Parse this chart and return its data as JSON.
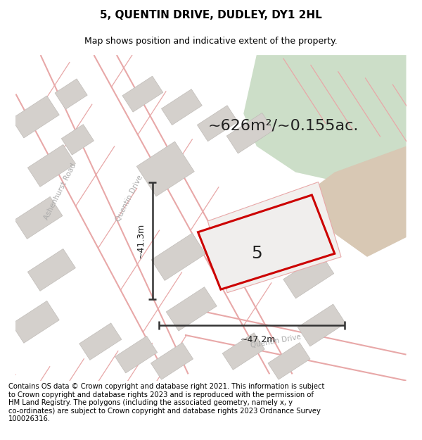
{
  "title": "5, QUENTIN DRIVE, DUDLEY, DY1 2HL",
  "subtitle": "Map shows position and indicative extent of the property.",
  "footer": "Contains OS data © Crown copyright and database right 2021. This information is subject\nto Crown copyright and database rights 2023 and is reproduced with the permission of\nHM Land Registry. The polygons (including the associated geometry, namely x, y\nco-ordinates) are subject to Crown copyright and database rights 2023 Ordnance Survey\n100026316.",
  "area_label": "~626m²/~0.155ac.",
  "dim_height": "~41.3m",
  "dim_width": "~47.2m",
  "plot_number": "5",
  "map_bg": "#f7f6f4",
  "green_color": "#ccdec8",
  "tan_color": "#d8c8b4",
  "road_color": "#e8a8a8",
  "building_color": "#d4d0cc",
  "building_edge": "#c0bcb8",
  "plot_outline_color": "#cc0000",
  "plot_fill_color": "#f0eeed",
  "dim_color": "#333333",
  "road_label_color": "#aaaaaa",
  "title_fontsize": 11,
  "subtitle_fontsize": 9,
  "footer_fontsize": 7.2,
  "area_fontsize": 16
}
